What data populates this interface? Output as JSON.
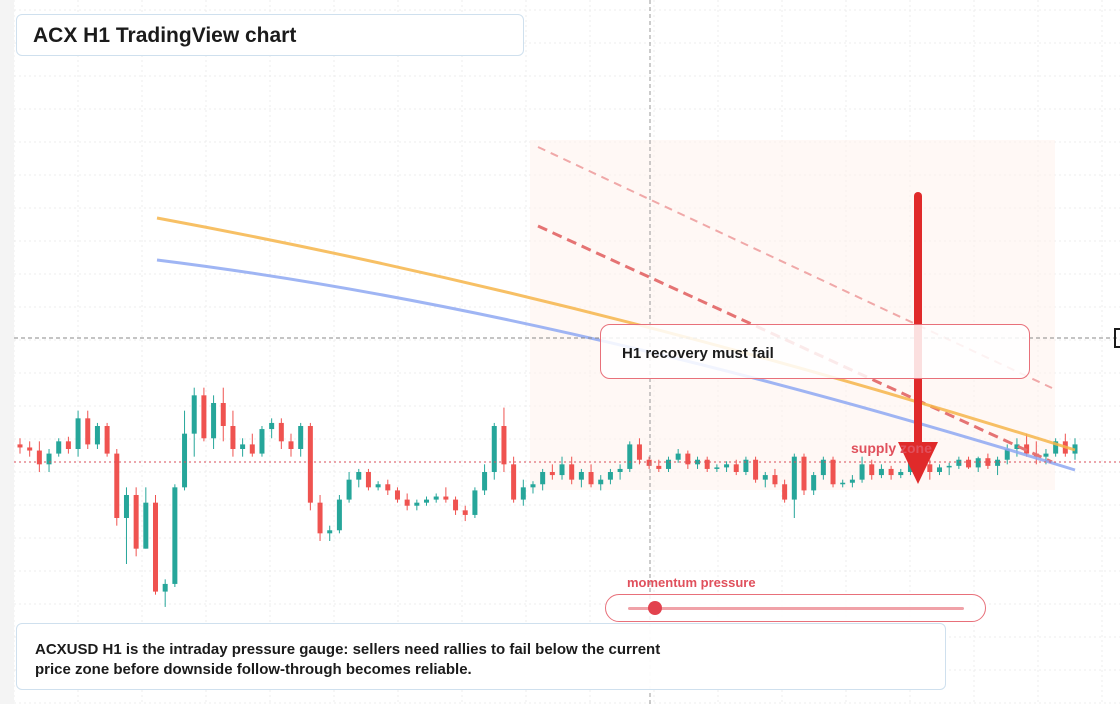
{
  "title": "ACX H1 TradingView chart",
  "callout_text": "H1 recovery must fail",
  "supply_label": "supply zone",
  "momentum": {
    "label": "momentum pressure",
    "level": 0.08
  },
  "summary": {
    "line1": "ACXUSD H1 is the intraday pressure gauge: sellers need rallies to fail below the current",
    "line2": "price zone before downside follow-through becomes reliable."
  },
  "colors": {
    "up": "#26a69a",
    "down": "#ef5350",
    "ma_slow": "#f6b54a",
    "ma_fast": "#8ea8f2",
    "bearish_arrow": "#e02a2a",
    "trendline": "#e57373"
  },
  "chart_data": {
    "type": "candlestick",
    "symbol": "ACXUSD",
    "timeframe": "H1",
    "ohlc": [
      [
        0.58,
        0.62,
        0.52,
        0.56
      ],
      [
        0.56,
        0.6,
        0.5,
        0.54
      ],
      [
        0.54,
        0.6,
        0.4,
        0.45
      ],
      [
        0.45,
        0.55,
        0.4,
        0.52
      ],
      [
        0.52,
        0.62,
        0.5,
        0.6
      ],
      [
        0.6,
        0.63,
        0.52,
        0.55
      ],
      [
        0.55,
        0.8,
        0.5,
        0.75
      ],
      [
        0.75,
        0.8,
        0.55,
        0.58
      ],
      [
        0.58,
        0.72,
        0.55,
        0.7
      ],
      [
        0.7,
        0.72,
        0.5,
        0.52
      ],
      [
        0.52,
        0.55,
        0.05,
        0.1
      ],
      [
        0.1,
        0.3,
        -0.2,
        0.25
      ],
      [
        0.25,
        0.3,
        -0.15,
        -0.1
      ],
      [
        -0.1,
        0.3,
        -0.1,
        0.2
      ],
      [
        0.2,
        0.25,
        -0.4,
        -0.38
      ],
      [
        -0.38,
        -0.3,
        -0.48,
        -0.33
      ],
      [
        -0.33,
        0.32,
        -0.35,
        0.3
      ],
      [
        0.3,
        0.8,
        0.28,
        0.65
      ],
      [
        0.65,
        0.95,
        0.5,
        0.9
      ],
      [
        0.9,
        0.95,
        0.6,
        0.62
      ],
      [
        0.62,
        0.9,
        0.55,
        0.85
      ],
      [
        0.85,
        0.95,
        0.6,
        0.7
      ],
      [
        0.7,
        0.8,
        0.5,
        0.55
      ],
      [
        0.55,
        0.62,
        0.5,
        0.58
      ],
      [
        0.58,
        0.65,
        0.5,
        0.52
      ],
      [
        0.52,
        0.7,
        0.5,
        0.68
      ],
      [
        0.68,
        0.75,
        0.62,
        0.72
      ],
      [
        0.72,
        0.75,
        0.55,
        0.6
      ],
      [
        0.6,
        0.65,
        0.5,
        0.55
      ],
      [
        0.55,
        0.72,
        0.5,
        0.7
      ],
      [
        0.7,
        0.72,
        0.15,
        0.2
      ],
      [
        0.2,
        0.25,
        -0.05,
        0.0
      ],
      [
        0.0,
        0.05,
        -0.05,
        0.02
      ],
      [
        0.02,
        0.25,
        0.0,
        0.22
      ],
      [
        0.22,
        0.4,
        0.2,
        0.35
      ],
      [
        0.35,
        0.42,
        0.3,
        0.4
      ],
      [
        0.4,
        0.42,
        0.28,
        0.3
      ],
      [
        0.3,
        0.34,
        0.28,
        0.32
      ],
      [
        0.32,
        0.35,
        0.25,
        0.28
      ],
      [
        0.28,
        0.3,
        0.2,
        0.22
      ],
      [
        0.22,
        0.26,
        0.15,
        0.18
      ],
      [
        0.18,
        0.22,
        0.15,
        0.2
      ],
      [
        0.2,
        0.24,
        0.18,
        0.22
      ],
      [
        0.22,
        0.26,
        0.2,
        0.24
      ],
      [
        0.24,
        0.3,
        0.2,
        0.22
      ],
      [
        0.22,
        0.24,
        0.12,
        0.15
      ],
      [
        0.15,
        0.18,
        0.08,
        0.12
      ],
      [
        0.12,
        0.3,
        0.1,
        0.28
      ],
      [
        0.28,
        0.45,
        0.25,
        0.4
      ],
      [
        0.4,
        0.72,
        0.35,
        0.7
      ],
      [
        0.7,
        0.82,
        0.4,
        0.45
      ],
      [
        0.45,
        0.5,
        0.2,
        0.22
      ],
      [
        0.22,
        0.35,
        0.18,
        0.3
      ],
      [
        0.3,
        0.34,
        0.26,
        0.32
      ],
      [
        0.32,
        0.42,
        0.28,
        0.4
      ],
      [
        0.4,
        0.45,
        0.35,
        0.38
      ],
      [
        0.38,
        0.5,
        0.35,
        0.45
      ],
      [
        0.45,
        0.5,
        0.32,
        0.35
      ],
      [
        0.35,
        0.42,
        0.3,
        0.4
      ],
      [
        0.4,
        0.45,
        0.3,
        0.32
      ],
      [
        0.32,
        0.38,
        0.28,
        0.35
      ],
      [
        0.35,
        0.42,
        0.32,
        0.4
      ],
      [
        0.4,
        0.45,
        0.35,
        0.42
      ],
      [
        0.42,
        0.6,
        0.4,
        0.58
      ],
      [
        0.58,
        0.62,
        0.45,
        0.48
      ],
      [
        0.48,
        0.5,
        0.42,
        0.44
      ],
      [
        0.44,
        0.48,
        0.4,
        0.42
      ],
      [
        0.42,
        0.5,
        0.4,
        0.48
      ],
      [
        0.48,
        0.55,
        0.46,
        0.52
      ],
      [
        0.52,
        0.54,
        0.42,
        0.45
      ],
      [
        0.45,
        0.5,
        0.42,
        0.48
      ],
      [
        0.48,
        0.5,
        0.4,
        0.42
      ],
      [
        0.42,
        0.45,
        0.4,
        0.43
      ],
      [
        0.43,
        0.47,
        0.4,
        0.45
      ],
      [
        0.45,
        0.48,
        0.38,
        0.4
      ],
      [
        0.4,
        0.5,
        0.38,
        0.48
      ],
      [
        0.48,
        0.5,
        0.33,
        0.35
      ],
      [
        0.35,
        0.4,
        0.3,
        0.38
      ],
      [
        0.38,
        0.42,
        0.3,
        0.32
      ],
      [
        0.32,
        0.35,
        0.2,
        0.22
      ],
      [
        0.22,
        0.52,
        0.1,
        0.5
      ],
      [
        0.5,
        0.52,
        0.25,
        0.28
      ],
      [
        0.28,
        0.4,
        0.25,
        0.38
      ],
      [
        0.38,
        0.5,
        0.35,
        0.48
      ],
      [
        0.48,
        0.5,
        0.3,
        0.32
      ],
      [
        0.32,
        0.35,
        0.3,
        0.33
      ],
      [
        0.33,
        0.38,
        0.3,
        0.35
      ],
      [
        0.35,
        0.5,
        0.33,
        0.45
      ],
      [
        0.45,
        0.48,
        0.35,
        0.38
      ],
      [
        0.38,
        0.45,
        0.36,
        0.42
      ],
      [
        0.42,
        0.44,
        0.35,
        0.38
      ],
      [
        0.38,
        0.42,
        0.36,
        0.4
      ],
      [
        0.4,
        0.48,
        0.38,
        0.46
      ],
      [
        0.46,
        0.5,
        0.4,
        0.45
      ],
      [
        0.45,
        0.48,
        0.35,
        0.4
      ],
      [
        0.4,
        0.45,
        0.38,
        0.43
      ],
      [
        0.43,
        0.46,
        0.38,
        0.44
      ],
      [
        0.44,
        0.5,
        0.42,
        0.48
      ],
      [
        0.48,
        0.5,
        0.42,
        0.43
      ],
      [
        0.43,
        0.5,
        0.4,
        0.49
      ],
      [
        0.49,
        0.52,
        0.42,
        0.44
      ],
      [
        0.44,
        0.5,
        0.38,
        0.48
      ],
      [
        0.48,
        0.58,
        0.45,
        0.55
      ],
      [
        0.55,
        0.62,
        0.5,
        0.58
      ],
      [
        0.58,
        0.65,
        0.5,
        0.52
      ],
      [
        0.52,
        0.6,
        0.45,
        0.5
      ],
      [
        0.5,
        0.55,
        0.45,
        0.52
      ],
      [
        0.52,
        0.62,
        0.5,
        0.6
      ],
      [
        0.6,
        0.65,
        0.5,
        0.52
      ],
      [
        0.52,
        0.62,
        0.48,
        0.58
      ]
    ],
    "annotations": [
      "H1 recovery must fail",
      "supply zone"
    ],
    "indicators": [
      "moving average (orange)",
      "moving average (blue)"
    ],
    "grid": true
  }
}
